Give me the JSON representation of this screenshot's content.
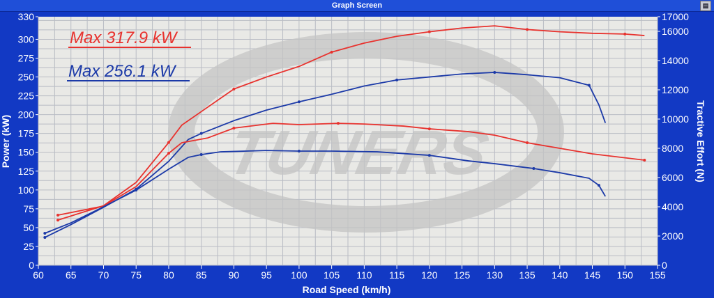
{
  "window": {
    "title": "Graph Screen",
    "control_icon": "window-menu-icon"
  },
  "colors": {
    "background": "#1239c4",
    "plot_bg": "#e9e9e6",
    "grid": "#b9bcc4",
    "red": "#e8322e",
    "blue": "#1c3aa8",
    "watermark": "#c4c4c4"
  },
  "watermark": {
    "logo_text": "TUNERS"
  },
  "chart_data": {
    "type": "line",
    "title": "Graph Screen",
    "xlabel": "Road Speed (km/h)",
    "ylabel": "Power (kW)",
    "y2label": "Tractive Effort (N)",
    "xlim": [
      60,
      155
    ],
    "ylim": [
      0,
      330
    ],
    "y2lim": [
      0,
      17000
    ],
    "xticks": [
      60,
      65,
      70,
      75,
      80,
      85,
      90,
      95,
      100,
      105,
      110,
      115,
      120,
      125,
      130,
      135,
      140,
      145,
      150,
      155
    ],
    "yticks": [
      0,
      25,
      50,
      75,
      100,
      125,
      150,
      175,
      200,
      225,
      250,
      275,
      300,
      330
    ],
    "y2ticks": [
      0,
      2000,
      4000,
      6000,
      8000,
      10000,
      12000,
      14000,
      16000,
      17000
    ],
    "grid": true,
    "legend": [
      {
        "label": "Max 317.9 kW",
        "color": "#e8322e"
      },
      {
        "label": "Max 256.1 kW",
        "color": "#1c3aa8"
      }
    ],
    "series": [
      {
        "name": "Power red",
        "axis": "left",
        "color": "#e8322e",
        "x": [
          63,
          70,
          75,
          80,
          82,
          85,
          90,
          95,
          100,
          105,
          110,
          115,
          120,
          125,
          130,
          135,
          140,
          145,
          150,
          153
        ],
        "y": [
          60,
          79,
          110,
          163,
          186,
          204,
          234,
          250,
          264,
          283,
          295,
          304,
          310,
          315,
          317.9,
          313,
          310,
          308,
          307,
          305
        ]
      },
      {
        "name": "Power blue",
        "axis": "left",
        "color": "#1c3aa8",
        "x": [
          61,
          65,
          70,
          75,
          80,
          83,
          85,
          90,
          95,
          100,
          105,
          110,
          115,
          120,
          125,
          130,
          135,
          140,
          144.5,
          146,
          147
        ],
        "y": [
          37,
          54,
          77,
          101,
          138,
          167,
          175,
          192,
          206,
          217,
          227,
          238,
          246,
          250,
          254,
          256.1,
          253,
          249,
          239,
          213,
          189
        ]
      },
      {
        "name": "Tractive effort red",
        "axis": "right",
        "color": "#e8322e",
        "x": [
          63,
          70,
          75,
          80,
          82,
          86,
          90,
          96,
          100,
          106,
          110,
          116,
          120,
          126,
          130,
          135,
          140,
          145,
          153
        ],
        "y": [
          3430,
          4050,
          5380,
          7660,
          8380,
          8710,
          9380,
          9710,
          9620,
          9710,
          9660,
          9520,
          9330,
          9140,
          8900,
          8380,
          8000,
          7620,
          7190
        ]
      },
      {
        "name": "Tractive effort blue",
        "axis": "right",
        "color": "#1c3aa8",
        "x": [
          61,
          65,
          70,
          75,
          80,
          83,
          85,
          88,
          95,
          100,
          105,
          112,
          120,
          126,
          130,
          136,
          140,
          144.5,
          146,
          147
        ],
        "y": [
          2190,
          2900,
          4000,
          5140,
          6570,
          7380,
          7570,
          7760,
          7850,
          7810,
          7810,
          7760,
          7520,
          7140,
          6950,
          6620,
          6330,
          5950,
          5470,
          4710
        ]
      }
    ]
  }
}
